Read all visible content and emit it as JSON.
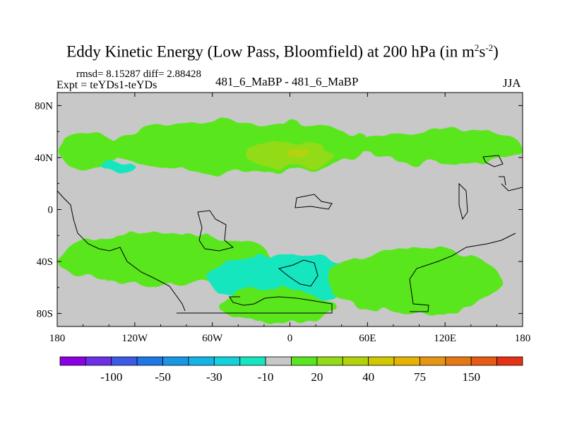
{
  "chart_data": {
    "type": "heatmap",
    "title": "Eddy Kinetic Energy (Low Pass, Bloomfield) at 200 hPa (in m",
    "title_units_sup1": "2",
    "title_units_mid": "s",
    "title_units_sup2": "-2",
    "title_units_end": ")",
    "stats_line": "rmsd= 8.15287 diff= 2.88428",
    "expt_line": "Expt = teYDs1-teYDs",
    "center_label": "481_6_MaBP - 481_6_MaBP",
    "season": "JJA",
    "xlim": [
      -180,
      180
    ],
    "ylim": [
      -90,
      90
    ],
    "x_ticks": [
      {
        "value": -180,
        "label": "180"
      },
      {
        "value": -120,
        "label": "120W"
      },
      {
        "value": -60,
        "label": "60W"
      },
      {
        "value": 0,
        "label": "0"
      },
      {
        "value": 60,
        "label": "60E"
      },
      {
        "value": 120,
        "label": "120E"
      },
      {
        "value": 180,
        "label": "180"
      }
    ],
    "y_ticks": [
      {
        "value": 80,
        "label": "80N"
      },
      {
        "value": 40,
        "label": "40N"
      },
      {
        "value": 0,
        "label": "0"
      },
      {
        "value": -40,
        "label": "40S"
      },
      {
        "value": -80,
        "label": "80S"
      }
    ],
    "colorbar": {
      "colors": [
        "#8c00e6",
        "#6e2fe8",
        "#3c5ae6",
        "#1e78e6",
        "#1996e6",
        "#14b4e6",
        "#14d2dc",
        "#14e6be",
        "#c8c8c8",
        "#5ae61e",
        "#91dc14",
        "#b4d20a",
        "#d2c800",
        "#e6b400",
        "#e69614",
        "#e67814",
        "#e65a14",
        "#e63214"
      ],
      "tick_labels": [
        "-100",
        "-50",
        "-30",
        "-10",
        "20",
        "40",
        "75",
        "150"
      ]
    },
    "regions": [
      {
        "name": "nh-band-west",
        "level": "10-20",
        "color": "#5ae61e",
        "lon": [
          -180,
          -130
        ],
        "lat": [
          30,
          60
        ]
      },
      {
        "name": "nh-storm-track",
        "level": "10-20",
        "color": "#5ae61e",
        "lon": [
          -140,
          60
        ],
        "lat": [
          28,
          68
        ]
      },
      {
        "name": "nh-core",
        "level": "20-30",
        "color": "#91dc14",
        "lon": [
          -35,
          35
        ],
        "lat": [
          32,
          52
        ]
      },
      {
        "name": "nh-peak",
        "level": "30-40",
        "color": "#b4d20a",
        "lon": [
          -5,
          15
        ],
        "lat": [
          38,
          46
        ]
      },
      {
        "name": "nh-east",
        "level": "10-20",
        "color": "#5ae61e",
        "lon": [
          55,
          180
        ],
        "lat": [
          35,
          62
        ]
      },
      {
        "name": "sh-band",
        "level": "10-20",
        "color": "#5ae61e",
        "lon": [
          -180,
          -15
        ],
        "lat": [
          -58,
          -18
        ]
      },
      {
        "name": "sh-negative",
        "level": "-10 to -20",
        "color": "#14e6be",
        "lon": [
          -65,
          55
        ],
        "lat": [
          -70,
          -35
        ]
      },
      {
        "name": "sh-negative-core",
        "level": "-20 to -30",
        "color": "#14d2dc",
        "lon": [
          40,
          45
        ],
        "lat": [
          -48,
          -42
        ]
      },
      {
        "name": "sh-east",
        "level": "10-20",
        "color": "#5ae61e",
        "lon": [
          30,
          165
        ],
        "lat": [
          -80,
          -30
        ]
      },
      {
        "name": "antarctic",
        "level": "10-20",
        "color": "#5ae61e",
        "lon": [
          -55,
          35
        ],
        "lat": [
          -88,
          -60
        ]
      },
      {
        "name": "nh-negative-spot",
        "level": "-10 to -20",
        "color": "#14e6be",
        "lon": [
          -145,
          -120
        ],
        "lat": [
          28,
          36
        ]
      }
    ]
  }
}
